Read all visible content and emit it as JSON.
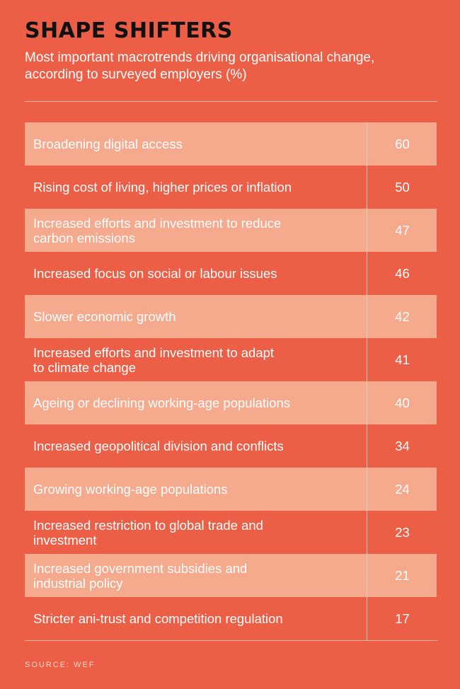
{
  "header": {
    "title": "SHAPE SHIFTERS",
    "subtitle": "Most important macrotrends driving organisational change, according to surveyed employers (%)"
  },
  "source": "SOURCE: WEF",
  "colors": {
    "background": "#EC5E46",
    "shaded_row": "#F5A98D",
    "title": "#111111"
  },
  "chart_data": {
    "type": "table",
    "title": "SHAPE SHIFTERS",
    "subtitle": "Most important macrotrends driving organisational change, according to surveyed employers (%)",
    "categories": [
      "Broadening digital access",
      "Rising cost of living, higher prices or inflation",
      "Increased efforts and investment to reduce\ncarbon emissions",
      "Increased focus on social or labour issues",
      "Slower economic growth",
      "Increased efforts and investment to adapt\nto climate change",
      "Ageing or declining working-age populations",
      "Increased geopolitical division and conflicts",
      "Growing working-age populations",
      "Increased restriction to global trade and\ninvestment",
      "Increased government subsidies and\nindustrial policy",
      "Stricter ani-trust and competition regulation"
    ],
    "values": [
      60,
      50,
      47,
      46,
      42,
      41,
      40,
      34,
      24,
      23,
      21,
      17
    ]
  }
}
